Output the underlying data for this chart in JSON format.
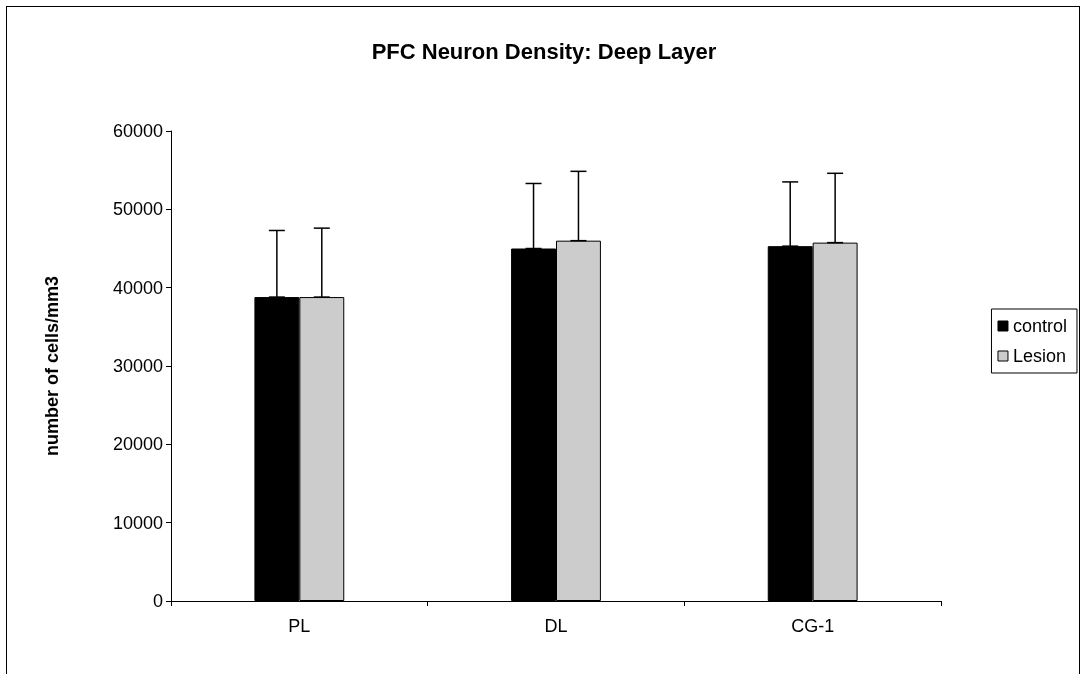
{
  "chart_data": {
    "type": "bar",
    "title": "PFC Neuron Density: Deep Layer",
    "ylabel": "number of cells/mm3",
    "categories": [
      "PL",
      "DL",
      "CG-1"
    ],
    "series": [
      {
        "name": "control",
        "color": "#000000",
        "values": [
          38800,
          45000,
          45300
        ],
        "errors": [
          [
            38800,
            47300
          ],
          [
            45000,
            53300
          ],
          [
            45300,
            53500
          ]
        ]
      },
      {
        "name": "Lesion",
        "color": "#cccccc",
        "values": [
          38800,
          46000,
          45750
        ],
        "errors": [
          [
            38800,
            47600
          ],
          [
            46000,
            54850
          ],
          [
            45750,
            54600
          ]
        ]
      }
    ],
    "ylim": [
      0,
      60000
    ],
    "yticks": [
      0,
      10000,
      20000,
      30000,
      40000,
      50000,
      60000
    ],
    "grid": false,
    "legend": "right"
  }
}
